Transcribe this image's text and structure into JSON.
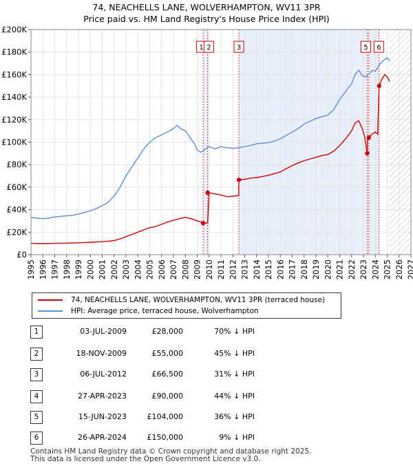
{
  "title_line1": "74, NEACHELLS LANE, WOLVERHAMPTON, WV11 3PR",
  "title_line2": "Price paid vs. HM Land Registry's House Price Index (HPI)",
  "colors": {
    "price": "#cc0000",
    "hpi": "#5a8ed6",
    "shade": "#e8eefa",
    "grid": "#e3e3e3",
    "marker_line": "#dd3333"
  },
  "legend": {
    "price_label": "74, NEACHELLS LANE, WOLVERHAMPTON, WV11 3PR (terraced house)",
    "hpi_label": "HPI: Average price, terraced house, Wolverhampton"
  },
  "transactions": [
    {
      "num": "1",
      "date": "03-JUL-2009",
      "price": "£28,000",
      "hpi_rel": "70% ↓ HPI"
    },
    {
      "num": "2",
      "date": "18-NOV-2009",
      "price": "£55,000",
      "hpi_rel": "45% ↓ HPI"
    },
    {
      "num": "3",
      "date": "06-JUL-2012",
      "price": "£66,500",
      "hpi_rel": "31% ↓ HPI"
    },
    {
      "num": "4",
      "date": "27-APR-2023",
      "price": "£90,000",
      "hpi_rel": "44% ↓ HPI"
    },
    {
      "num": "5",
      "date": "15-JUN-2023",
      "price": "£104,000",
      "hpi_rel": "36% ↓ HPI"
    },
    {
      "num": "6",
      "date": "26-APR-2024",
      "price": "£150,000",
      "hpi_rel": "9% ↓ HPI"
    }
  ],
  "footer_line1": "Contains HM Land Registry data © Crown copyright and database right 2025.",
  "footer_line2": "This data is licensed under the Open Government Licence v3.0.",
  "chart_data": {
    "type": "line",
    "xlim": [
      1995,
      2027
    ],
    "ylim": [
      0,
      200000
    ],
    "y_ticks": [
      0,
      20000,
      40000,
      60000,
      80000,
      100000,
      120000,
      140000,
      160000,
      180000,
      200000
    ],
    "y_tick_labels": [
      "£0",
      "£20K",
      "£40K",
      "£60K",
      "£80K",
      "£100K",
      "£120K",
      "£140K",
      "£160K",
      "£180K",
      "£200K"
    ],
    "x_ticks": [
      1995,
      1996,
      1997,
      1998,
      1999,
      2000,
      2001,
      2002,
      2003,
      2004,
      2005,
      2006,
      2007,
      2008,
      2009,
      2010,
      2011,
      2012,
      2013,
      2014,
      2015,
      2016,
      2017,
      2018,
      2019,
      2020,
      2021,
      2022,
      2023,
      2024,
      2025,
      2026,
      2027
    ],
    "x_tick_labels": [
      "1995",
      "1996",
      "1997",
      "1998",
      "1999",
      "2000",
      "2001",
      "2002",
      "2003",
      "2004",
      "2005",
      "2006",
      "2007",
      "2008",
      "2009",
      "2010",
      "2011",
      "2012",
      "2013",
      "2014",
      "2015",
      "2016",
      "2017",
      "2018",
      "2019",
      "2020",
      "2021",
      "2022",
      "2023",
      "2024",
      "2025",
      "2026",
      "2027"
    ],
    "shaded_ranges": [
      [
        2009.5,
        2009.9
      ],
      [
        2012.5,
        2023.3
      ],
      [
        2023.45,
        2024.3
      ]
    ],
    "future_hatch_from": 2025.2,
    "series": [
      {
        "name": "HPI: Average price, terraced house, Wolverhampton",
        "x": [
          1995,
          1995.5,
          1996,
          1996.5,
          1997,
          1997.5,
          1998,
          1998.5,
          1999,
          1999.5,
          2000,
          2000.5,
          2001,
          2001.5,
          2002,
          2002.5,
          2003,
          2003.5,
          2004,
          2004.5,
          2005,
          2005.5,
          2006,
          2006.5,
          2007,
          2007.3,
          2007.6,
          2008,
          2008.4,
          2008.8,
          2009,
          2009.3,
          2009.6,
          2010,
          2010.5,
          2011,
          2011.5,
          2012,
          2012.5,
          2013,
          2013.5,
          2014,
          2014.5,
          2015,
          2015.5,
          2016,
          2016.5,
          2017,
          2017.5,
          2018,
          2018.5,
          2019,
          2019.5,
          2020,
          2020.5,
          2021,
          2021.5,
          2022,
          2022.3,
          2022.6,
          2022.9,
          2023.2,
          2023.5,
          2023.8,
          2024,
          2024.3,
          2024.6,
          2025,
          2025.2
        ],
        "values": [
          33000,
          32500,
          32000,
          32500,
          33500,
          34000,
          34500,
          35000,
          36000,
          37500,
          39000,
          41000,
          43500,
          46500,
          52000,
          60000,
          70000,
          78000,
          86000,
          94000,
          100000,
          104000,
          106500,
          109000,
          112000,
          115000,
          112000,
          110000,
          104000,
          98000,
          93000,
          91000,
          93000,
          96000,
          94000,
          96000,
          95000,
          94500,
          95000,
          96000,
          97000,
          98500,
          99000,
          99500,
          101000,
          103000,
          106000,
          109000,
          112000,
          116000,
          118500,
          121000,
          122500,
          124000,
          129000,
          138000,
          145000,
          152000,
          160000,
          164000,
          159000,
          158000,
          161000,
          164000,
          163000,
          168000,
          172000,
          175000,
          172000
        ]
      },
      {
        "name": "74, NEACHELLS LANE, WOLVERHAMPTON, WV11 3PR (terraced house)",
        "x": [
          1995,
          1996,
          1997,
          1998,
          1999,
          2000,
          2001,
          2001.5,
          2002,
          2002.5,
          2003,
          2003.5,
          2004,
          2004.5,
          2005,
          2005.5,
          2006,
          2006.5,
          2007,
          2007.5,
          2008,
          2008.5,
          2009,
          2009.5,
          2009.88,
          2010,
          2010.5,
          2011,
          2011.5,
          2012,
          2012.5,
          2012.51,
          2013,
          2013.5,
          2014,
          2014.5,
          2015,
          2015.5,
          2016,
          2016.5,
          2017,
          2017.5,
          2018,
          2018.5,
          2019,
          2019.5,
          2020,
          2020.5,
          2021,
          2021.5,
          2022,
          2022.3,
          2022.6,
          2022.9,
          2023.1,
          2023.32,
          2023.35,
          2023.45,
          2023.7,
          2024,
          2024.2,
          2024.32,
          2024.5,
          2024.8,
          2025,
          2025.2
        ],
        "values": [
          10000,
          9800,
          10000,
          10200,
          10500,
          11000,
          11500,
          12000,
          12500,
          14000,
          16000,
          18000,
          20000,
          22000,
          24000,
          25000,
          27000,
          29000,
          30500,
          32000,
          33000,
          32000,
          30000,
          28500,
          28000,
          55000,
          54000,
          53000,
          51500,
          52000,
          52500,
          66500,
          67000,
          68000,
          68500,
          69500,
          70500,
          72000,
          73500,
          76500,
          79000,
          81500,
          83500,
          85000,
          86500,
          88000,
          89000,
          92000,
          97000,
          103000,
          110000,
          117000,
          119000,
          112000,
          105000,
          90000,
          104000,
          104000,
          107000,
          109000,
          107000,
          150000,
          155000,
          160000,
          158000,
          154000
        ]
      }
    ],
    "markers": [
      {
        "label": "1",
        "x": 2009.5,
        "y": 28000
      },
      {
        "label": "2",
        "x": 2009.88,
        "y": 55000
      },
      {
        "label": "3",
        "x": 2012.51,
        "y": 66500
      },
      {
        "label": "4",
        "x": 2023.32,
        "y": 90000
      },
      {
        "label": "5",
        "x": 2023.45,
        "y": 104000
      },
      {
        "label": "6",
        "x": 2024.32,
        "y": 150000
      }
    ],
    "box_labels": [
      "1",
      "2",
      "3",
      "5",
      "6"
    ]
  }
}
